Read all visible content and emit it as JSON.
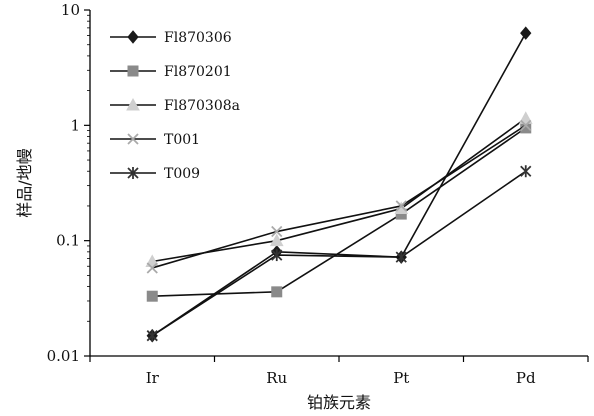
{
  "chart_data": {
    "type": "line",
    "title": "",
    "xlabel": "铂族元素",
    "ylabel": "样品/地幔",
    "yscale": "log",
    "ylim": [
      0.01,
      10
    ],
    "y_ticks": [
      {
        "value": 0.01,
        "label": "0.01"
      },
      {
        "value": 0.1,
        "label": "0.1"
      },
      {
        "value": 1,
        "label": "1"
      },
      {
        "value": 10,
        "label": "10"
      }
    ],
    "categories": [
      "Ir",
      "Ru",
      "Pt",
      "Pd"
    ],
    "grid": false,
    "legend_position": "top-left",
    "series": [
      {
        "name": "Fl870306",
        "marker": "diamond",
        "color": "#1a1a1a",
        "values": [
          0.015,
          0.08,
          0.072,
          6.3
        ]
      },
      {
        "name": "Fl870201",
        "marker": "square",
        "color": "#8a8a8a",
        "values": [
          0.033,
          0.036,
          0.17,
          0.95
        ]
      },
      {
        "name": "Fl870308a",
        "marker": "triangle",
        "color": "#cfcfcf",
        "values": [
          0.066,
          0.1,
          0.19,
          1.15
        ]
      },
      {
        "name": "T001",
        "marker": "x",
        "color": "#a9a9a9",
        "values": [
          0.058,
          0.12,
          0.2,
          1.0
        ]
      },
      {
        "name": "T009",
        "marker": "asterisk",
        "color": "#333333",
        "values": [
          0.015,
          0.075,
          0.072,
          0.4
        ]
      }
    ]
  }
}
